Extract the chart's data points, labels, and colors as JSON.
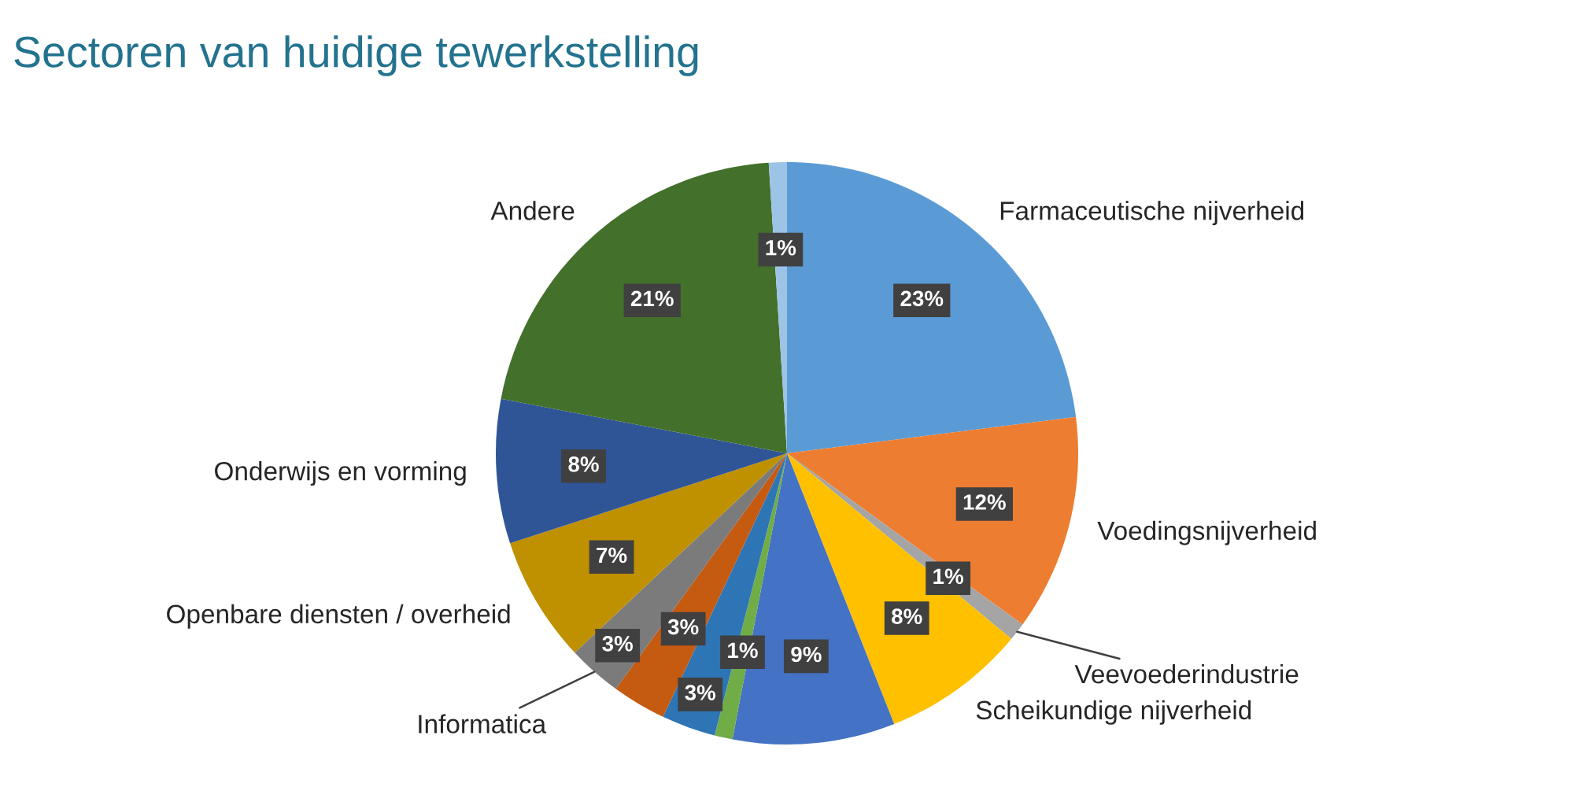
{
  "chart_data": {
    "type": "pie",
    "title": "Sectoren van huidige tewerkstelling",
    "categories": [
      "Farmaceutische nijverheid",
      "Voedingsnijverheid",
      "Veevoederindustrie",
      "Scheikundige nijverheid",
      null,
      null,
      null,
      null,
      "Informatica",
      "Openbare diensten / overheid",
      "Onderwijs en vorming",
      "Andere",
      null
    ],
    "values": [
      23,
      12,
      1,
      8,
      9,
      1,
      3,
      3,
      3,
      7,
      8,
      21,
      1
    ],
    "colors": [
      "#5b9bd5",
      "#ed7d31",
      "#a5a5a5",
      "#ffc000",
      "#4472c4",
      "#70ad47",
      "#2e75b6",
      "#c55a11",
      "#7b7b7b",
      "#bf9000",
      "#2f5597",
      "#43702b",
      "#9dc3e6"
    ],
    "value_labels": [
      "23%",
      "12%",
      "1%",
      "8%",
      "9%",
      "1%",
      "3%",
      "3%",
      "3%",
      "7%",
      "8%",
      "21%",
      "1%"
    ]
  }
}
